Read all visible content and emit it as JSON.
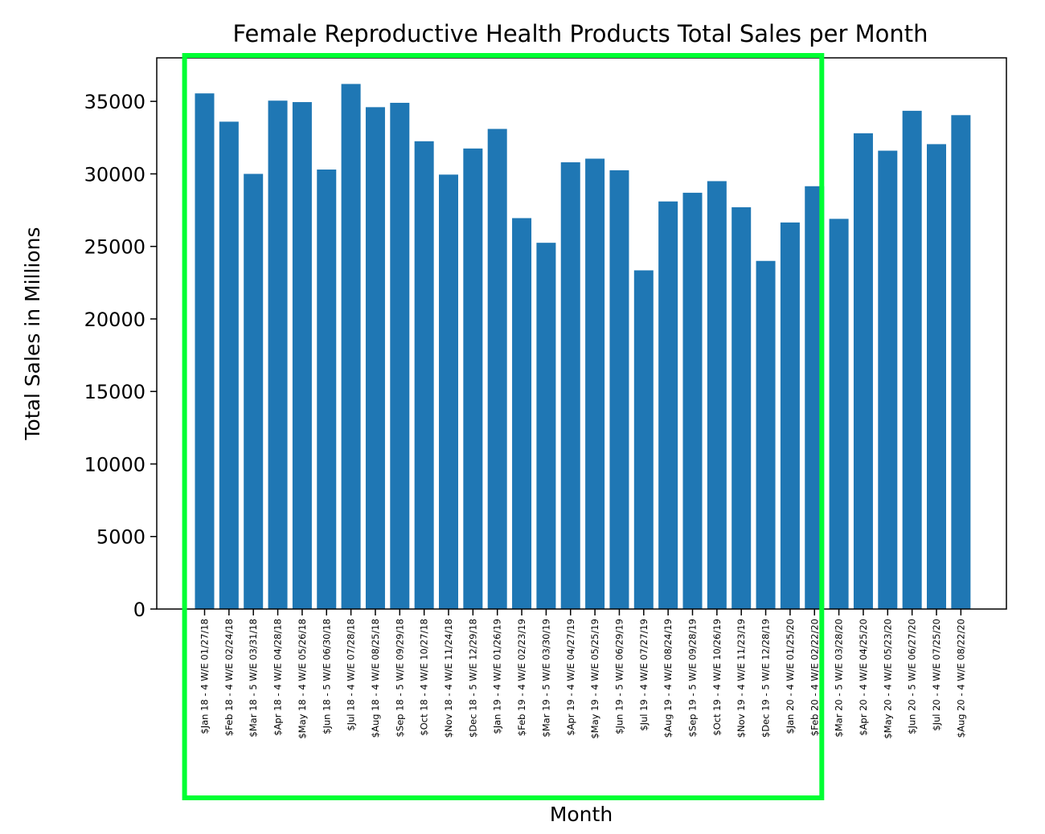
{
  "chart_data": {
    "type": "bar",
    "title": "Female Reproductive Health Products Total Sales per Month",
    "xlabel": "Month",
    "ylabel": "Total Sales in Millions",
    "ylim": [
      0,
      38000
    ],
    "yticks": [
      0,
      5000,
      10000,
      15000,
      20000,
      25000,
      30000,
      35000
    ],
    "grid": false,
    "bar_color": "#1f77b4",
    "categories": [
      "$Jan 18 - 4 W/E 01/27/18",
      "$Feb 18 - 4 W/E 02/24/18",
      "$Mar 18 - 5 W/E 03/31/18",
      "$Apr 18 - 4 W/E 04/28/18",
      "$May 18 - 4 W/E 05/26/18",
      "$Jun 18 - 5 W/E 06/30/18",
      "$Jul 18 - 4 W/E 07/28/18",
      "$Aug 18 - 4 W/E 08/25/18",
      "$Sep 18 - 5 W/E 09/29/18",
      "$Oct 18 - 4 W/E 10/27/18",
      "$Nov 18 - 4 W/E 11/24/18",
      "$Dec 18 - 5 W/E 12/29/18",
      "$Jan 19 - 4 W/E 01/26/19",
      "$Feb 19 - 4 W/E 02/23/19",
      "$Mar 19 - 5 W/E 03/30/19",
      "$Apr 19 - 4 W/E 04/27/19",
      "$May 19 - 4 W/E 05/25/19",
      "$Jun 19 - 5 W/E 06/29/19",
      "$Jul 19 - 4 W/E 07/27/19",
      "$Aug 19 - 4 W/E 08/24/19",
      "$Sep 19 - 5 W/E 09/28/19",
      "$Oct 19 - 4 W/E 10/26/19",
      "$Nov 19 - 4 W/E 11/23/19",
      "$Dec 19 - 5 W/E 12/28/19",
      "$Jan 20 - 4 W/E 01/25/20",
      "$Feb 20 - 4 W/E 02/22/20",
      "$Mar 20 - 5 W/E 03/28/20",
      "$Apr 20 - 4 W/E 04/25/20",
      "$May 20 - 4 W/E 05/23/20",
      "$Jun 20 - 5 W/E 06/27/20",
      "$Jul 20 - 4 W/E 07/25/20",
      "$Aug 20 - 4 W/E 08/22/20"
    ],
    "values": [
      35550,
      33600,
      30000,
      35050,
      34950,
      30300,
      36200,
      34600,
      34900,
      32250,
      29950,
      31750,
      33100,
      26950,
      25250,
      30800,
      31050,
      30250,
      23350,
      28100,
      28700,
      29500,
      27700,
      24000,
      26650,
      29150,
      26900,
      32800,
      31600,
      34350,
      32050,
      34050
    ],
    "highlight": {
      "color": "#00ff33",
      "from_category": "$Jan 18 - 4 W/E 01/27/18",
      "to_category": "$Feb 20 - 4 W/E 02/22/20"
    }
  }
}
